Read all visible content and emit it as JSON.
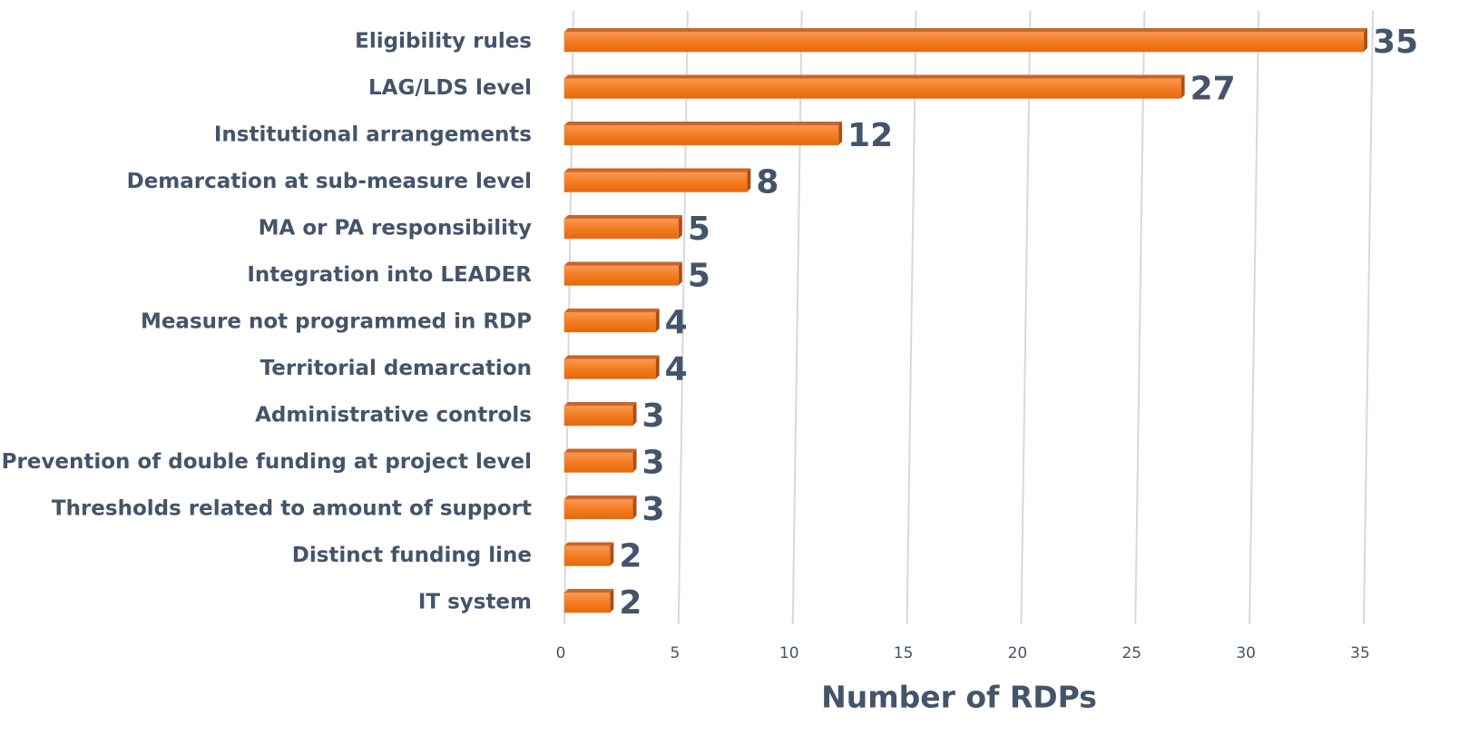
{
  "chart_data": {
    "type": "bar",
    "orientation": "horizontal",
    "categories": [
      "Eligibility rules",
      "LAG/LDS level",
      "Institutional arrangements",
      "Demarcation at sub-measure level",
      "MA or PA responsibility",
      "Integration into LEADER",
      "Measure not programmed in RDP",
      "Territorial demarcation",
      "Administrative controls",
      "Prevention of double funding at project level",
      "Thresholds related to amount of support",
      "Distinct funding line",
      "IT system"
    ],
    "values": [
      35,
      27,
      12,
      8,
      5,
      5,
      4,
      4,
      3,
      3,
      3,
      2,
      2
    ],
    "color": "#f47b20",
    "xlabel": "Number of RDPs",
    "xlim": [
      0,
      35
    ],
    "xticks": [
      0,
      5,
      10,
      15,
      20,
      25,
      30,
      35
    ],
    "grid": true
  }
}
